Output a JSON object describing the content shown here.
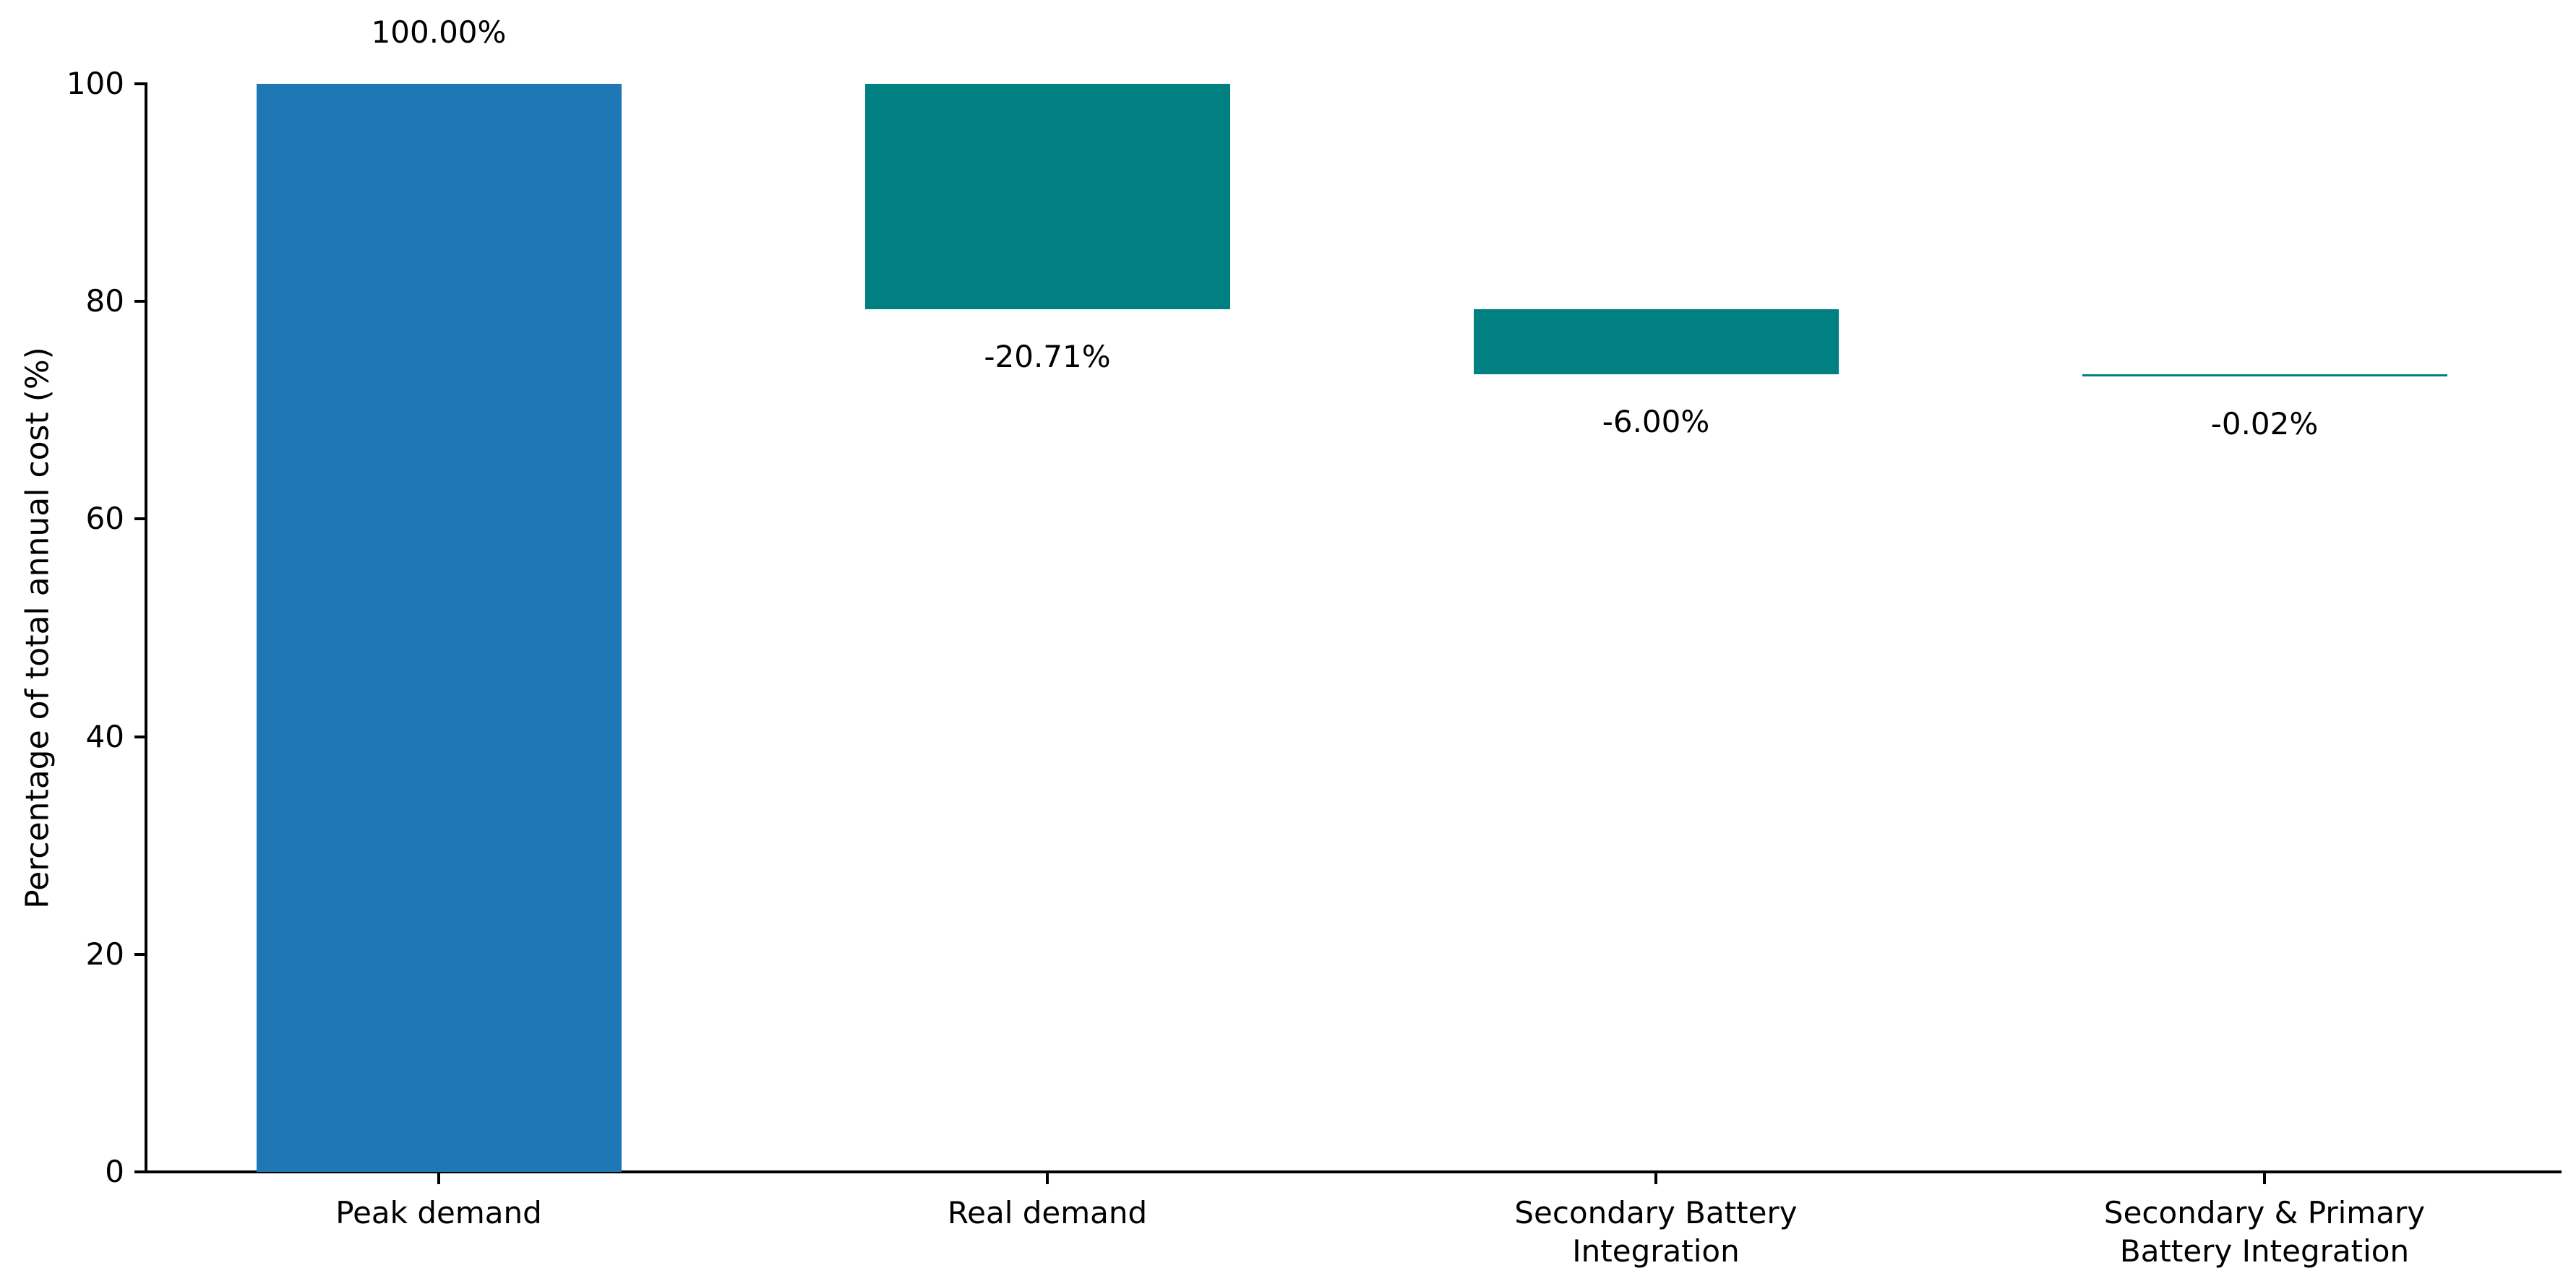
{
  "chart_data": {
    "type": "bar",
    "subtype": "waterfall",
    "title": "",
    "xlabel": "",
    "ylabel": "Percentage of total annual cost (%)",
    "ylim": [
      0,
      100
    ],
    "yticks": [
      0,
      20,
      40,
      60,
      80,
      100
    ],
    "grid": false,
    "legend": false,
    "background_color": "#ffffff",
    "axis_color": "#000000",
    "categories": [
      "Peak demand",
      "Real demand",
      "Secondary Battery\nIntegration",
      "Secondary & Primary\nBattery Integration"
    ],
    "bars": [
      {
        "category": "Peak demand",
        "start": 0,
        "end": 100,
        "change": 100.0,
        "value_label": "100.00%",
        "label_position": "above",
        "color": "#1f77b4"
      },
      {
        "category": "Real demand",
        "start": 79.29,
        "end": 100,
        "change": -20.71,
        "value_label": "-20.71%",
        "label_position": "below",
        "color": "#008080"
      },
      {
        "category": "Secondary Battery Integration",
        "start": 73.29,
        "end": 79.29,
        "change": -6.0,
        "value_label": "-6.00%",
        "label_position": "below",
        "color": "#008080"
      },
      {
        "category": "Secondary & Primary Battery Integration",
        "start": 73.27,
        "end": 73.29,
        "change": -0.02,
        "value_label": "-0.02%",
        "label_position": "below",
        "color": "#008080"
      }
    ]
  }
}
